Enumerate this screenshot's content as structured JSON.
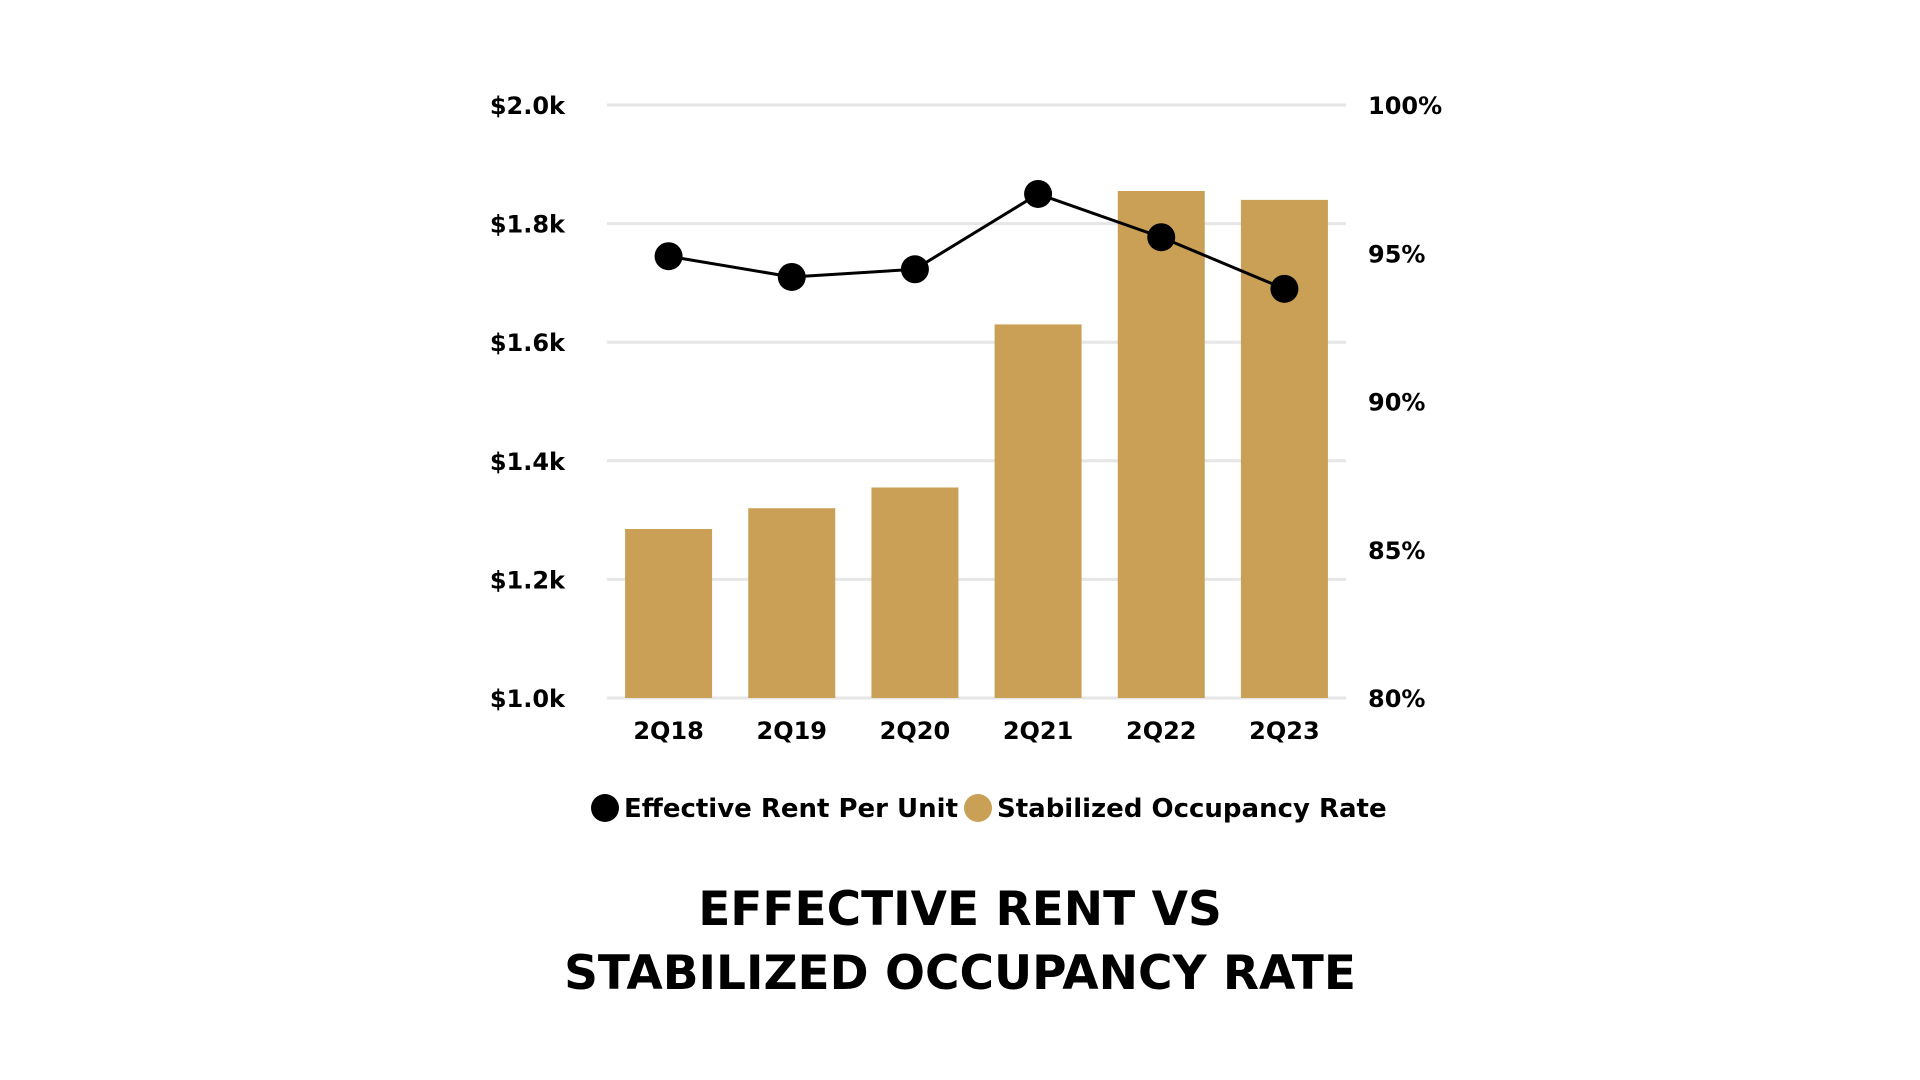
{
  "chart_data": {
    "type": "bar+line",
    "title_lines": [
      "EFFECTIVE RENT VS",
      "STABILIZED OCCUPANCY RATE"
    ],
    "categories": [
      "2Q18",
      "2Q19",
      "2Q20",
      "2Q21",
      "2Q22",
      "2Q23"
    ],
    "left_axis": {
      "ticks": [
        1000,
        1200,
        1400,
        1600,
        1800,
        2000
      ],
      "tick_labels": [
        "$1.0k",
        "$1.2k",
        "$1.4k",
        "$1.6k",
        "$1.8k",
        "$2.0k"
      ],
      "ylim": [
        1000,
        2000
      ]
    },
    "right_axis": {
      "ticks": [
        80,
        85,
        90,
        95,
        100
      ],
      "tick_labels": [
        "80%",
        "85%",
        "90%",
        "95%",
        "100%"
      ],
      "ylim": [
        80,
        100
      ]
    },
    "series": [
      {
        "name": "Stabilized Occupancy Rate",
        "type": "bar",
        "axis": "left",
        "color": "#c9a055",
        "values": [
          1285,
          1320,
          1355,
          1630,
          1855,
          1840
        ]
      },
      {
        "name": "Effective Rent Per Unit",
        "type": "line",
        "axis": "left",
        "color": "#000000",
        "values": [
          1745,
          1710,
          1723,
          1850,
          1777,
          1690
        ]
      }
    ],
    "legend": [
      "Effective Rent Per Unit",
      "Stabilized Occupancy Rate"
    ],
    "grid": true
  }
}
